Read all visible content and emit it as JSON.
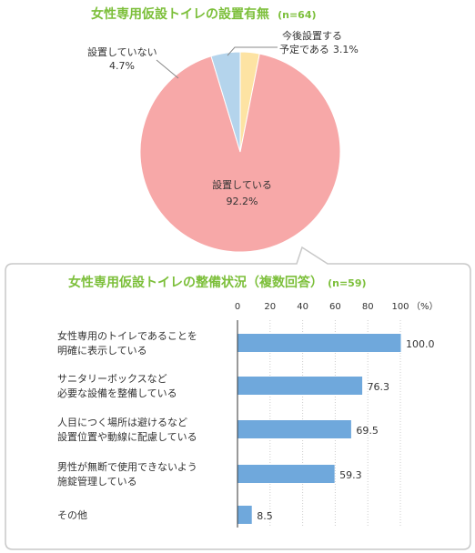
{
  "chart_data": [
    {
      "type": "pie",
      "title": "女性専用仮設トイレの設置有無",
      "title_n": "(n=64)",
      "slices": [
        {
          "label": "設置している",
          "value": 92.2,
          "value_text": "92.2%",
          "color": "#f7a8a8"
        },
        {
          "label": "設置していない",
          "value": 4.7,
          "value_text": "4.7%",
          "color": "#b4d4ec"
        },
        {
          "label": "今後設置する予定である",
          "label_line1": "今後設置する",
          "label_line2": "予定である",
          "value": 3.1,
          "value_text": "3.1%",
          "color": "#fde3a3"
        }
      ]
    },
    {
      "type": "bar",
      "orientation": "horizontal",
      "title": "女性専用仮設トイレの整備状況（複数回答）",
      "title_n": "(n=59)",
      "unit": "（%）",
      "xlim": [
        0,
        100
      ],
      "ticks": [
        0,
        20,
        40,
        60,
        80,
        100
      ],
      "bar_color": "#6fa8dc",
      "categories": [
        {
          "line1": "女性専用のトイレであることを",
          "line2": "明確に表示している"
        },
        {
          "line1": "サニタリーボックスなど",
          "line2": "必要な設備を整備している"
        },
        {
          "line1": "人目につく場所は避けるなど",
          "line2": "設置位置や動線に配慮している"
        },
        {
          "line1": "男性が無断で使用できないよう",
          "line2": "施錠管理している"
        },
        {
          "line1": "その他",
          "line2": ""
        }
      ],
      "values": [
        100.0,
        76.3,
        69.5,
        59.3,
        8.5
      ],
      "value_labels": [
        "100.0",
        "76.3",
        "69.5",
        "59.3",
        "8.5"
      ]
    }
  ]
}
